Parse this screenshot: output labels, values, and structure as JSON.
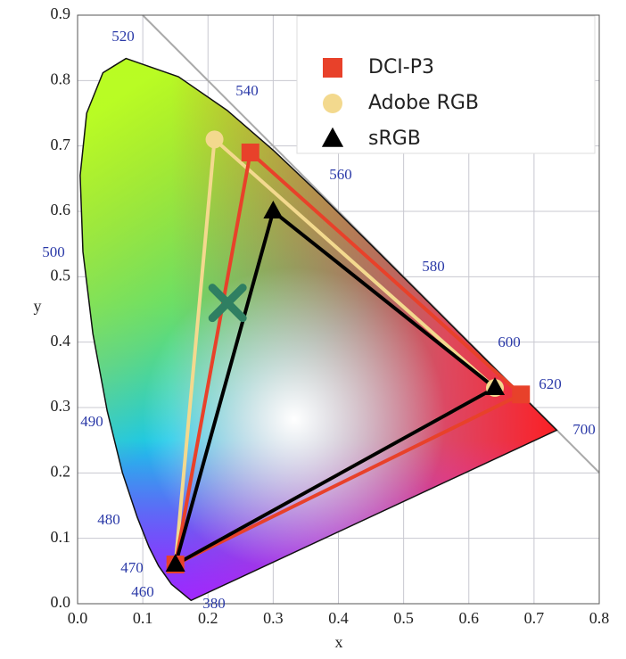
{
  "chart_data": {
    "type": "gamut",
    "xlabel": "x",
    "ylabel": "y",
    "xlim": [
      0,
      0.8
    ],
    "ylim": [
      0,
      0.9
    ],
    "xticks": [
      {
        "value": 0,
        "label": "0.0"
      },
      0.1,
      0.2,
      0.3,
      0.4,
      0.5,
      0.6,
      0.7,
      0.8
    ],
    "yticks": [
      {
        "value": 0,
        "label": "0.0"
      },
      0.1,
      0.2,
      0.3,
      0.4,
      0.5,
      0.6,
      0.7,
      0.8,
      0.9
    ],
    "grid": true,
    "legend": "upper right",
    "wavelength_labels": [
      520,
      540,
      560,
      580,
      600,
      620,
      700,
      500,
      490,
      480,
      470,
      460,
      380
    ],
    "series": [
      {
        "name": "Adobe RGB",
        "color": "#f3d98e",
        "marker": "circle",
        "x": [
          0.64,
          0.21,
          0.15
        ],
        "y": [
          0.33,
          0.71,
          0.06
        ]
      },
      {
        "name": "DCI-P3",
        "color": "#e8412a",
        "marker": "square",
        "x": [
          0.68,
          0.265,
          0.15
        ],
        "y": [
          0.32,
          0.69,
          0.06
        ]
      },
      {
        "name": "sRGB",
        "color": "#000000",
        "marker": "triangle",
        "x": [
          0.64,
          0.3,
          0.15
        ],
        "y": [
          0.33,
          0.6,
          0.06
        ]
      }
    ],
    "legend_order": [
      1,
      0,
      2
    ],
    "point": {
      "x": 0.23,
      "y": 0.46,
      "color": "#2f7f62"
    }
  }
}
